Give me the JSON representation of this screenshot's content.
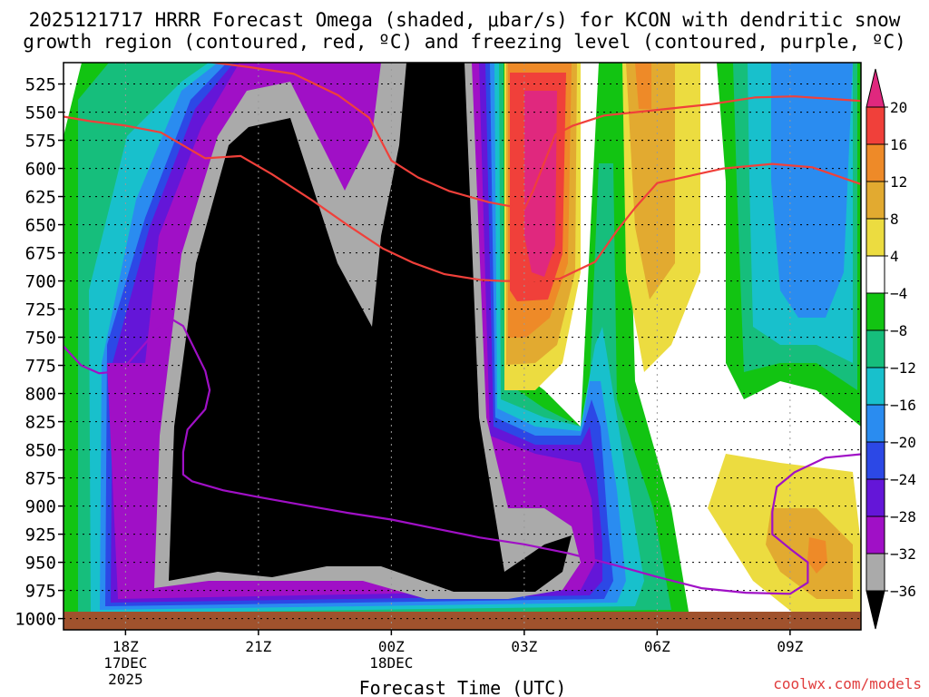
{
  "chart_data": {
    "type": "heatmap",
    "title_line1": "2025121717 HRRR Forecast Omega (shaded, μbar/s) for KCON with dendritic snow",
    "title_line2": "growth region (contoured, red, ºC) and freezing level (contoured, purple, ºC)",
    "xlabel": "Forecast Time (UTC)",
    "ylabel": "",
    "y_axis_reversed": true,
    "ylim": [
      1010,
      506
    ],
    "xlim_hours": [
      -1.4,
      16.6
    ],
    "y_ticks": [
      525,
      550,
      575,
      600,
      625,
      650,
      675,
      700,
      725,
      750,
      775,
      800,
      825,
      850,
      875,
      900,
      925,
      950,
      975,
      1000
    ],
    "x_ticks": [
      {
        "hour": 0,
        "label": "18Z",
        "sub1": "17DEC",
        "sub2": "2025"
      },
      {
        "hour": 3,
        "label": "21Z",
        "sub1": "",
        "sub2": ""
      },
      {
        "hour": 6,
        "label": "00Z",
        "sub1": "18DEC",
        "sub2": ""
      },
      {
        "hour": 9,
        "label": "03Z",
        "sub1": "",
        "sub2": ""
      },
      {
        "hour": 12,
        "label": "06Z",
        "sub1": "",
        "sub2": ""
      },
      {
        "hour": 15,
        "label": "09Z",
        "sub1": "",
        "sub2": ""
      }
    ],
    "colorbar": {
      "labels": [
        "20",
        "16",
        "12",
        "8",
        "4",
        "−4",
        "−8",
        "−12",
        "−16",
        "−20",
        "−24",
        "−28",
        "−32",
        "−36"
      ],
      "bins": [
        {
          "color": "#e0287e"
        },
        {
          "color": "#f0403a"
        },
        {
          "color": "#ee8a28"
        },
        {
          "color": "#e2aa30"
        },
        {
          "color": "#ecdc40"
        },
        {
          "color": "#ffffff"
        },
        {
          "color": "#12c412"
        },
        {
          "color": "#16be7c"
        },
        {
          "color": "#18c0cc"
        },
        {
          "color": "#2a8cf0"
        },
        {
          "color": "#2c48e6"
        },
        {
          "color": "#6416d8"
        },
        {
          "color": "#a010c6"
        },
        {
          "color": "#aaaaaa"
        }
      ]
    },
    "ground_color": "#a0522d",
    "series": [
      {
        "name": "dendritic snow growth region -12C",
        "color": "#f0403a",
        "points": [
          [
            -1.4,
            554
          ],
          [
            -0.8,
            558
          ],
          [
            0.0,
            562
          ],
          [
            0.8,
            568
          ],
          [
            1.8,
            591
          ],
          [
            2.6,
            589
          ],
          [
            3.3,
            605
          ],
          [
            4.2,
            628
          ],
          [
            5.0,
            650
          ],
          [
            5.8,
            671
          ],
          [
            6.5,
            684
          ],
          [
            7.2,
            694
          ],
          [
            8.0,
            699
          ],
          [
            8.5,
            700
          ],
          [
            9.0,
            700
          ],
          [
            9.8,
            698
          ],
          [
            10.6,
            683
          ],
          [
            11.1,
            655
          ],
          [
            11.5,
            635
          ],
          [
            12.0,
            613
          ],
          [
            13.5,
            600
          ],
          [
            14.6,
            596
          ],
          [
            15.5,
            599
          ],
          [
            16.6,
            614
          ]
        ]
      },
      {
        "name": "dendritic snow growth region -18C",
        "color": "#f0403a",
        "points": [
          [
            1.8,
            505
          ],
          [
            2.8,
            510
          ],
          [
            3.8,
            516
          ],
          [
            4.8,
            535
          ],
          [
            5.5,
            555
          ],
          [
            6.0,
            593
          ],
          [
            6.6,
            608
          ],
          [
            7.3,
            620
          ],
          [
            8.2,
            630
          ],
          [
            9.0,
            636
          ],
          [
            9.2,
            620
          ],
          [
            9.4,
            600
          ],
          [
            9.7,
            570
          ],
          [
            10.1,
            562
          ],
          [
            10.8,
            553
          ],
          [
            12.0,
            548
          ],
          [
            13.2,
            543
          ],
          [
            14.2,
            537
          ],
          [
            15.1,
            536
          ],
          [
            16.2,
            539
          ],
          [
            16.6,
            540
          ]
        ]
      },
      {
        "name": "freezing level 0C",
        "color": "#a010c6",
        "points": [
          [
            -1.4,
            758
          ],
          [
            -1.0,
            775
          ],
          [
            -0.6,
            782
          ],
          [
            -0.1,
            780
          ],
          [
            0.3,
            762
          ],
          [
            0.7,
            744
          ],
          [
            1.0,
            733
          ],
          [
            1.3,
            740
          ],
          [
            1.8,
            780
          ],
          [
            1.9,
            797
          ],
          [
            1.8,
            814
          ],
          [
            1.4,
            832
          ],
          [
            1.3,
            852
          ],
          [
            1.3,
            872
          ],
          [
            1.5,
            878
          ],
          [
            2.2,
            886
          ],
          [
            3.0,
            892
          ],
          [
            4.0,
            899
          ],
          [
            5.0,
            906
          ],
          [
            6.0,
            912
          ],
          [
            7.0,
            920
          ],
          [
            8.0,
            928
          ],
          [
            9.0,
            934
          ],
          [
            10.0,
            942
          ],
          [
            11.0,
            952
          ],
          [
            12.0,
            963
          ],
          [
            13.0,
            973
          ],
          [
            14.0,
            977
          ],
          [
            15.0,
            978
          ],
          [
            15.4,
            968
          ],
          [
            15.4,
            950
          ],
          [
            15.0,
            938
          ],
          [
            14.6,
            925
          ],
          [
            14.6,
            905
          ],
          [
            14.7,
            883
          ],
          [
            15.1,
            870
          ],
          [
            15.8,
            857
          ],
          [
            16.6,
            854
          ]
        ]
      }
    ]
  },
  "watermark": "coolwx.com/models"
}
